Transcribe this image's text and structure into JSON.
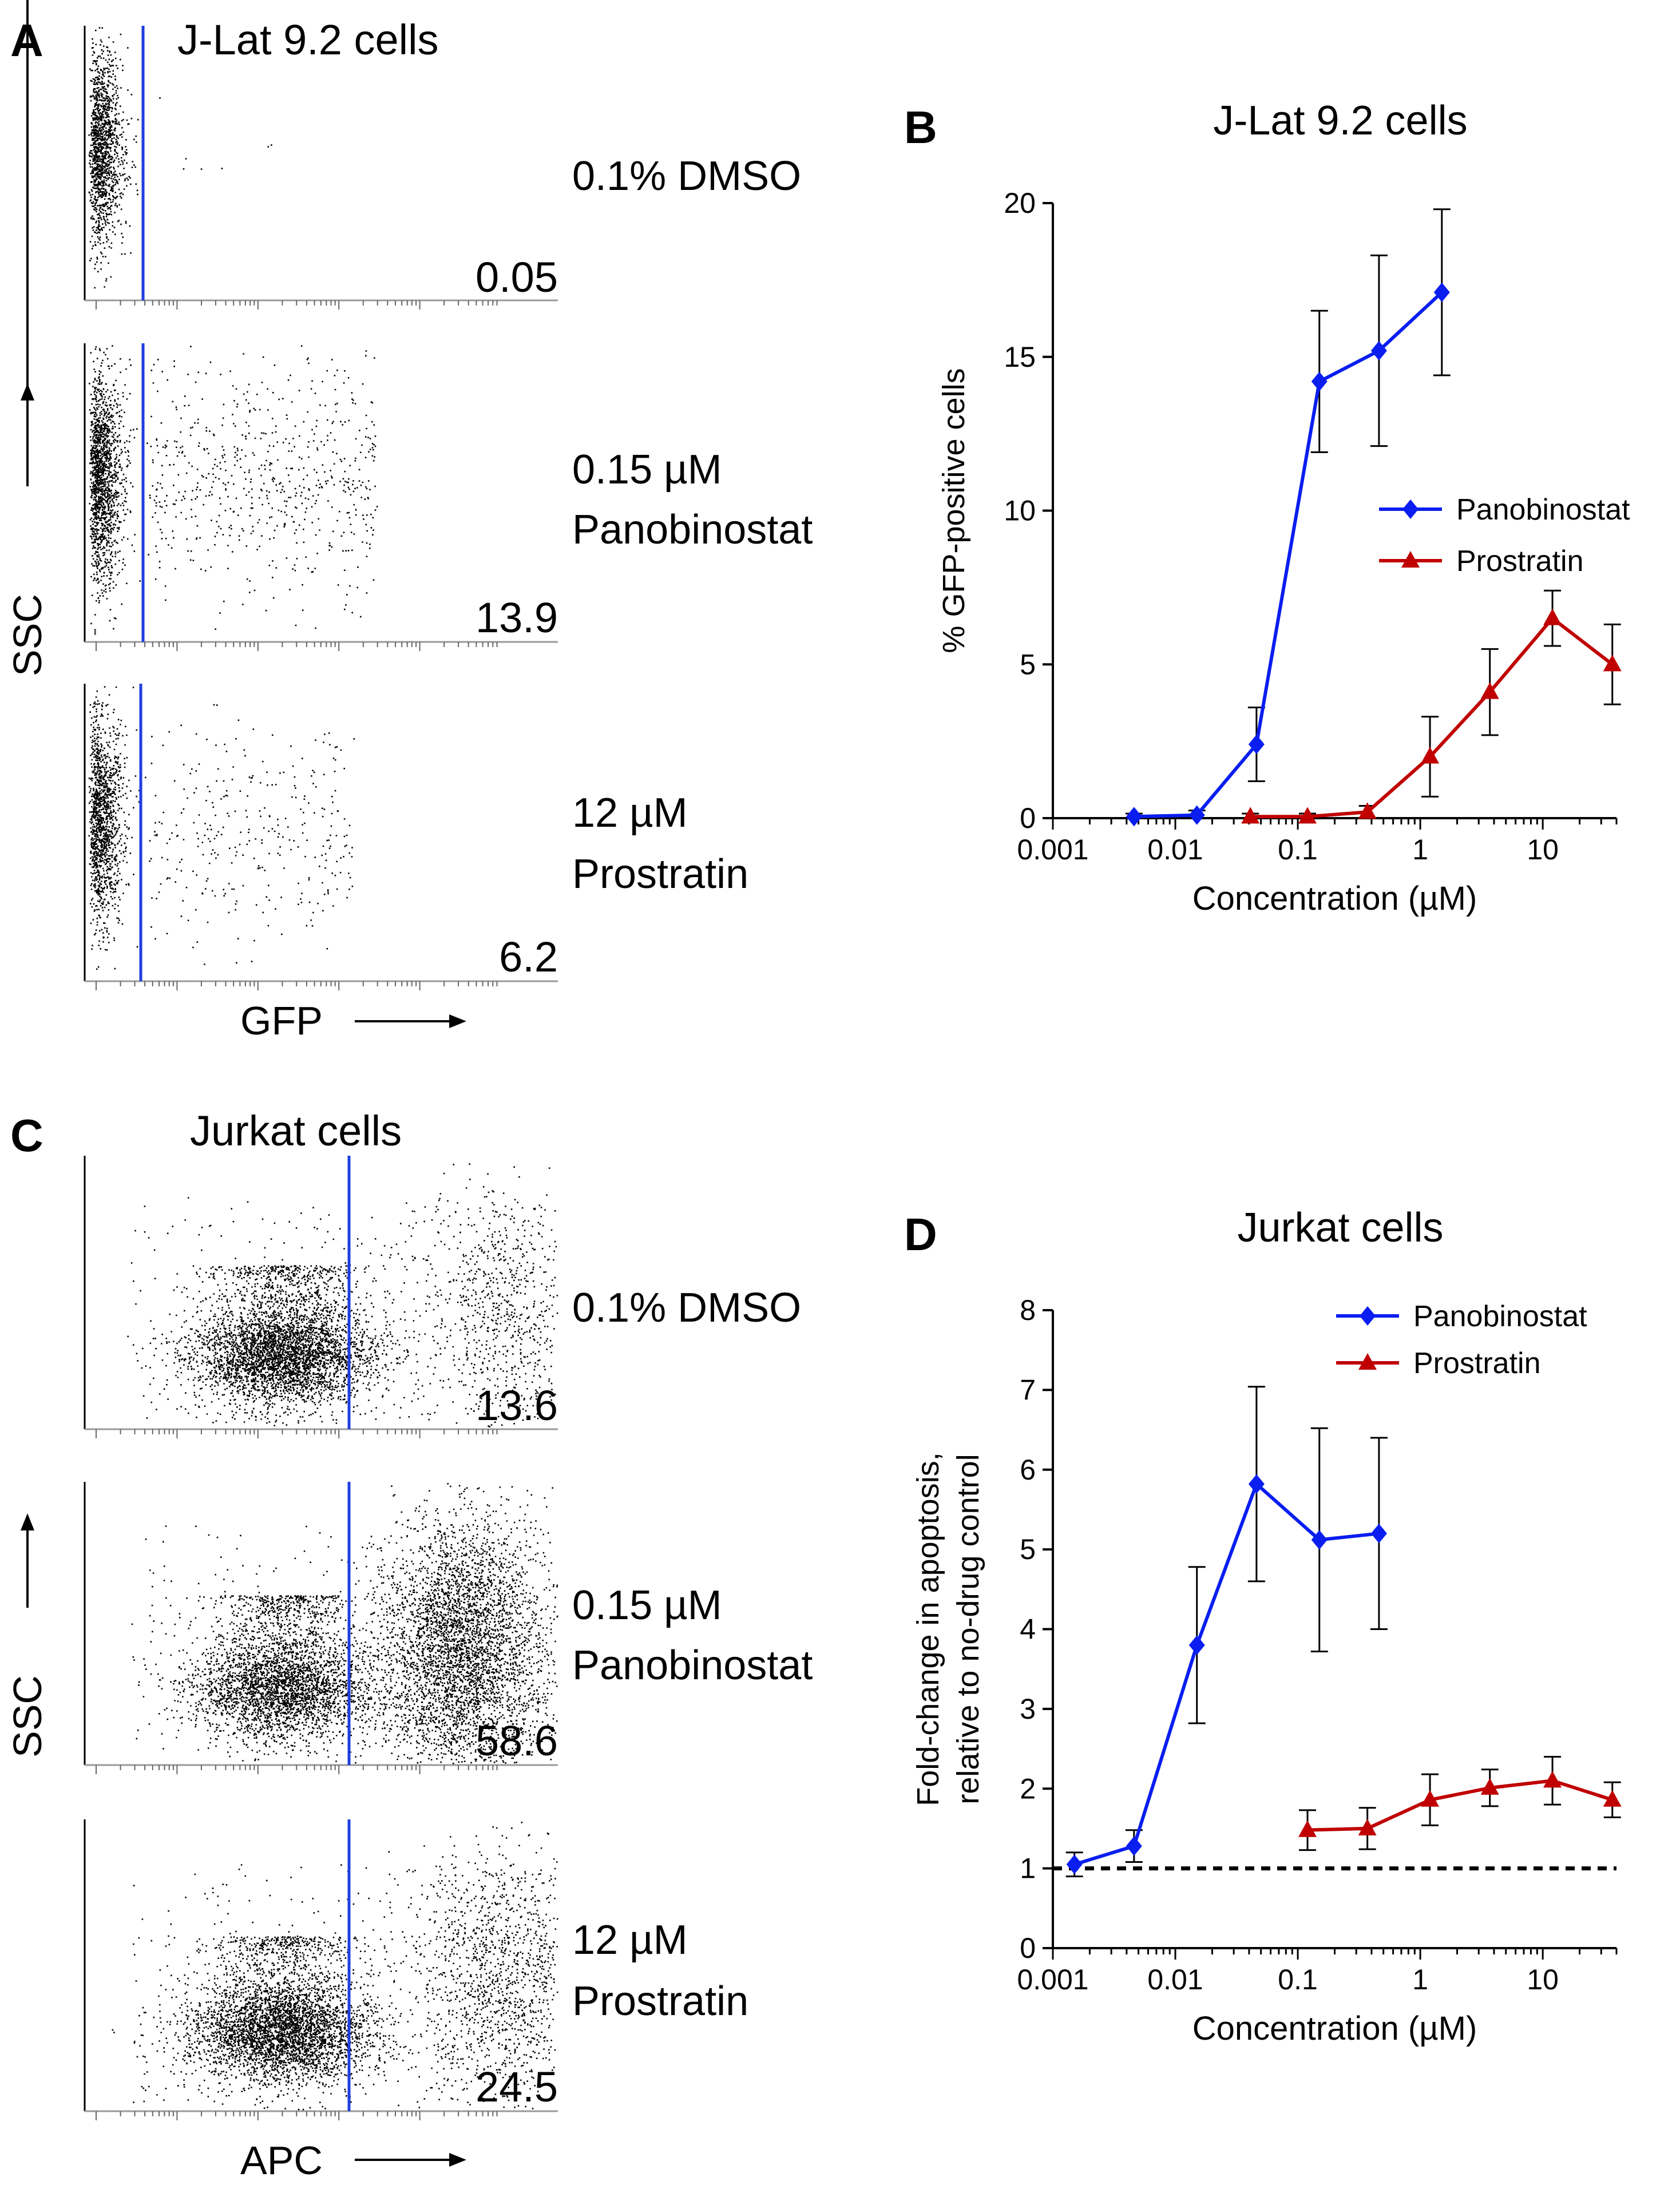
{
  "figure": {
    "panel_a": {
      "letter": "A",
      "title": "J-Lat 9.2 cells",
      "x_axis_label": "GFP",
      "y_axis_label": "SSC",
      "gate_color": "#1f3fe0",
      "plots": [
        {
          "condition_line1": "0.1% DMSO",
          "condition_line2": "",
          "percent": "0.05"
        },
        {
          "condition_line1": "0.15 µM",
          "condition_line2": "Panobinostat",
          "percent": "13.9"
        },
        {
          "condition_line1": "12 µM",
          "condition_line2": "Prostratin",
          "percent": "6.2"
        }
      ]
    },
    "panel_c": {
      "letter": "C",
      "title": "Jurkat cells",
      "x_axis_label": "APC",
      "y_axis_label": "SSC",
      "gate_color": "#1f3fe0",
      "plots": [
        {
          "condition_line1": "0.1% DMSO",
          "condition_line2": "",
          "percent": "13.6"
        },
        {
          "condition_line1": "0.15 µM",
          "condition_line2": "Panobinostat",
          "percent": "58.6"
        },
        {
          "condition_line1": "12 µM",
          "condition_line2": "Prostratin",
          "percent": "24.5"
        }
      ]
    }
  },
  "chart_data": [
    {
      "panel": "B",
      "type": "line",
      "title": "J-Lat 9.2 cells",
      "xlabel": "Concentration (µM)",
      "ylabel": "% GFP-positive cells",
      "xscale": "log",
      "xlim": [
        0.001,
        40
      ],
      "ylim": [
        0,
        20
      ],
      "xticks": [
        0.001,
        0.01,
        0.1,
        1,
        10
      ],
      "xtick_labels": [
        "0.001",
        "0.01",
        "0.1",
        "1",
        "10"
      ],
      "yticks": [
        0,
        5,
        10,
        15,
        20
      ],
      "ytick_labels": [
        "0",
        "5",
        "10",
        "15",
        "20"
      ],
      "legend_position": "right",
      "reference_line": null,
      "series": [
        {
          "name": "Panobinostat",
          "color": "#0a1ef0",
          "marker": "diamond",
          "x": [
            0.0046,
            0.015,
            0.046,
            0.15,
            0.46,
            1.5
          ],
          "y": [
            0.05,
            0.1,
            2.4,
            14.2,
            15.2,
            17.1
          ],
          "err": [
            0.1,
            0.15,
            1.2,
            2.3,
            3.1,
            2.7
          ]
        },
        {
          "name": "Prostratin",
          "color": "#c00000",
          "marker": "triangle",
          "x": [
            0.041,
            0.12,
            0.37,
            1.2,
            3.7,
            12,
            37
          ],
          "y": [
            0.05,
            0.05,
            0.2,
            2.0,
            4.1,
            6.5,
            5.0
          ],
          "err": [
            0.1,
            0.1,
            0.2,
            1.3,
            1.4,
            0.9,
            1.3
          ]
        }
      ]
    },
    {
      "panel": "D",
      "type": "line",
      "title": "Jurkat cells",
      "xlabel": "Concentration (µM)",
      "ylabel_line1": "Fold-change in apoptosis,",
      "ylabel_line2": "relative to no-drug control",
      "xscale": "log",
      "xlim": [
        0.001,
        40
      ],
      "ylim": [
        0,
        8
      ],
      "xticks": [
        0.001,
        0.01,
        0.1,
        1,
        10
      ],
      "xtick_labels": [
        "0.001",
        "0.01",
        "0.1",
        "1",
        "10"
      ],
      "yticks": [
        0,
        1,
        2,
        3,
        4,
        5,
        6,
        7,
        8
      ],
      "ytick_labels": [
        "0",
        "1",
        "2",
        "3",
        "4",
        "5",
        "6",
        "7",
        "8"
      ],
      "legend_position": "top-right",
      "reference_line": 1,
      "series": [
        {
          "name": "Panobinostat",
          "color": "#0a1ef0",
          "marker": "diamond",
          "x": [
            0.0015,
            0.0046,
            0.015,
            0.046,
            0.15,
            0.46
          ],
          "y": [
            1.05,
            1.28,
            3.8,
            5.82,
            5.12,
            5.2
          ],
          "err": [
            0.15,
            0.2,
            0.98,
            1.22,
            1.4,
            1.2
          ]
        },
        {
          "name": "Prostratin",
          "color": "#c00000",
          "marker": "triangle",
          "x": [
            0.12,
            0.37,
            1.2,
            3.7,
            12,
            37
          ],
          "y": [
            1.48,
            1.5,
            1.86,
            2.01,
            2.1,
            1.86
          ],
          "err": [
            0.25,
            0.26,
            0.32,
            0.23,
            0.3,
            0.22
          ]
        }
      ]
    }
  ]
}
